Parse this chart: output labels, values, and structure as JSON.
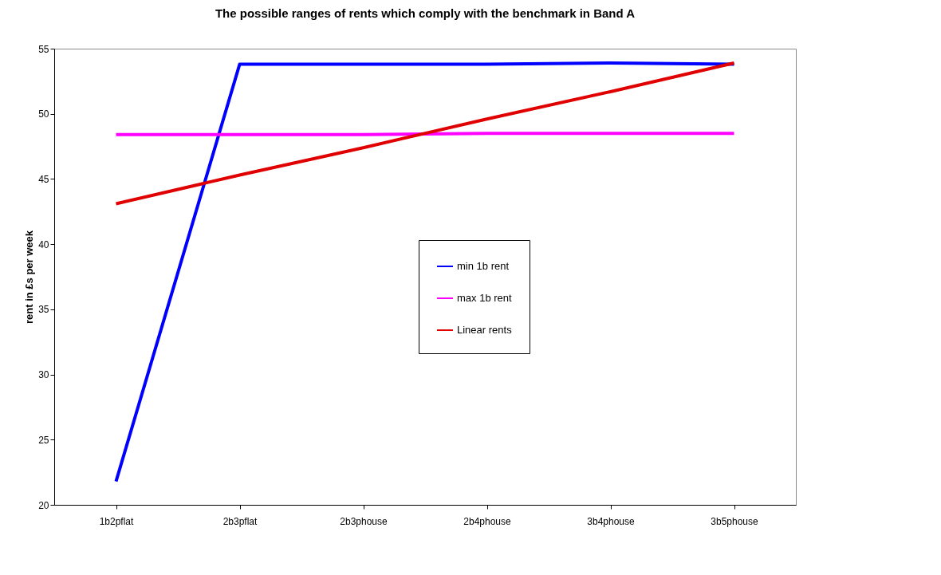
{
  "chart_data": {
    "type": "line",
    "title": "The possible ranges of rents which comply with the benchmark in Band A",
    "ylabel": "rent in £s per week",
    "categories": [
      "1b2pflat",
      "2b3pflat",
      "2b3phouse",
      "2b4phouse",
      "3b4phouse",
      "3b5phouse"
    ],
    "series": [
      {
        "name": "min 1b rent",
        "color": "#0000ff",
        "values": [
          21.8,
          53.8,
          53.8,
          53.8,
          53.9,
          53.8
        ]
      },
      {
        "name": "max 1b rent",
        "color": "#ff00ff",
        "values": [
          48.4,
          48.4,
          48.4,
          48.5,
          48.5,
          48.5
        ]
      },
      {
        "name": "Linear rents",
        "color": "#e00000",
        "values": [
          43.1,
          45.3,
          47.4,
          49.6,
          51.7,
          53.9
        ]
      }
    ],
    "ylim": [
      20,
      55
    ],
    "yticks": [
      20,
      25,
      30,
      35,
      40,
      45,
      50,
      55
    ],
    "grid": false,
    "legend": "center",
    "marker": "none",
    "line_style": "solid"
  }
}
